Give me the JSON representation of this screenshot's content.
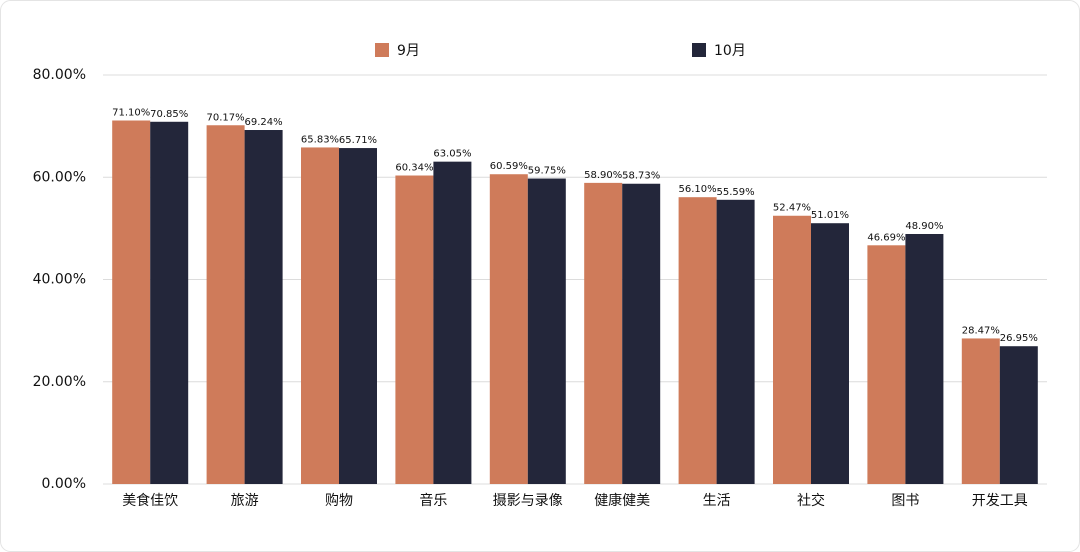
{
  "chart_data": {
    "type": "bar",
    "categories": [
      "美食佳饮",
      "旅游",
      "购物",
      "音乐",
      "摄影与录像",
      "健康健美",
      "生活",
      "社交",
      "图书",
      "开发工具"
    ],
    "series": [
      {
        "name": "9月",
        "color": "#cf7b5a",
        "values": [
          71.1,
          70.17,
          65.83,
          60.34,
          60.59,
          58.9,
          56.1,
          52.47,
          46.69,
          28.47
        ],
        "value_labels": [
          "71.10%",
          "70.17%",
          "65.83%",
          "60.34%",
          "60.59%",
          "58.90%",
          "56.10%",
          "52.47%",
          "46.69%",
          "28.47%"
        ]
      },
      {
        "name": "10月",
        "color": "#23263a",
        "values": [
          70.85,
          69.24,
          65.71,
          63.05,
          59.75,
          58.73,
          55.59,
          51.01,
          48.9,
          26.95
        ],
        "value_labels": [
          "70.85%",
          "69.24%",
          "65.71%",
          "63.05%",
          "59.75%",
          "58.73%",
          "55.59%",
          "51.01%",
          "48.90%",
          "26.95%"
        ]
      }
    ],
    "ylim": [
      0,
      80
    ],
    "yticks": [
      {
        "value": 0,
        "label": "0.00%"
      },
      {
        "value": 20,
        "label": "20.00%"
      },
      {
        "value": 40,
        "label": "40.00%"
      },
      {
        "value": 60,
        "label": "60.00%"
      },
      {
        "value": 80,
        "label": "80.00%"
      }
    ],
    "grid": true
  }
}
